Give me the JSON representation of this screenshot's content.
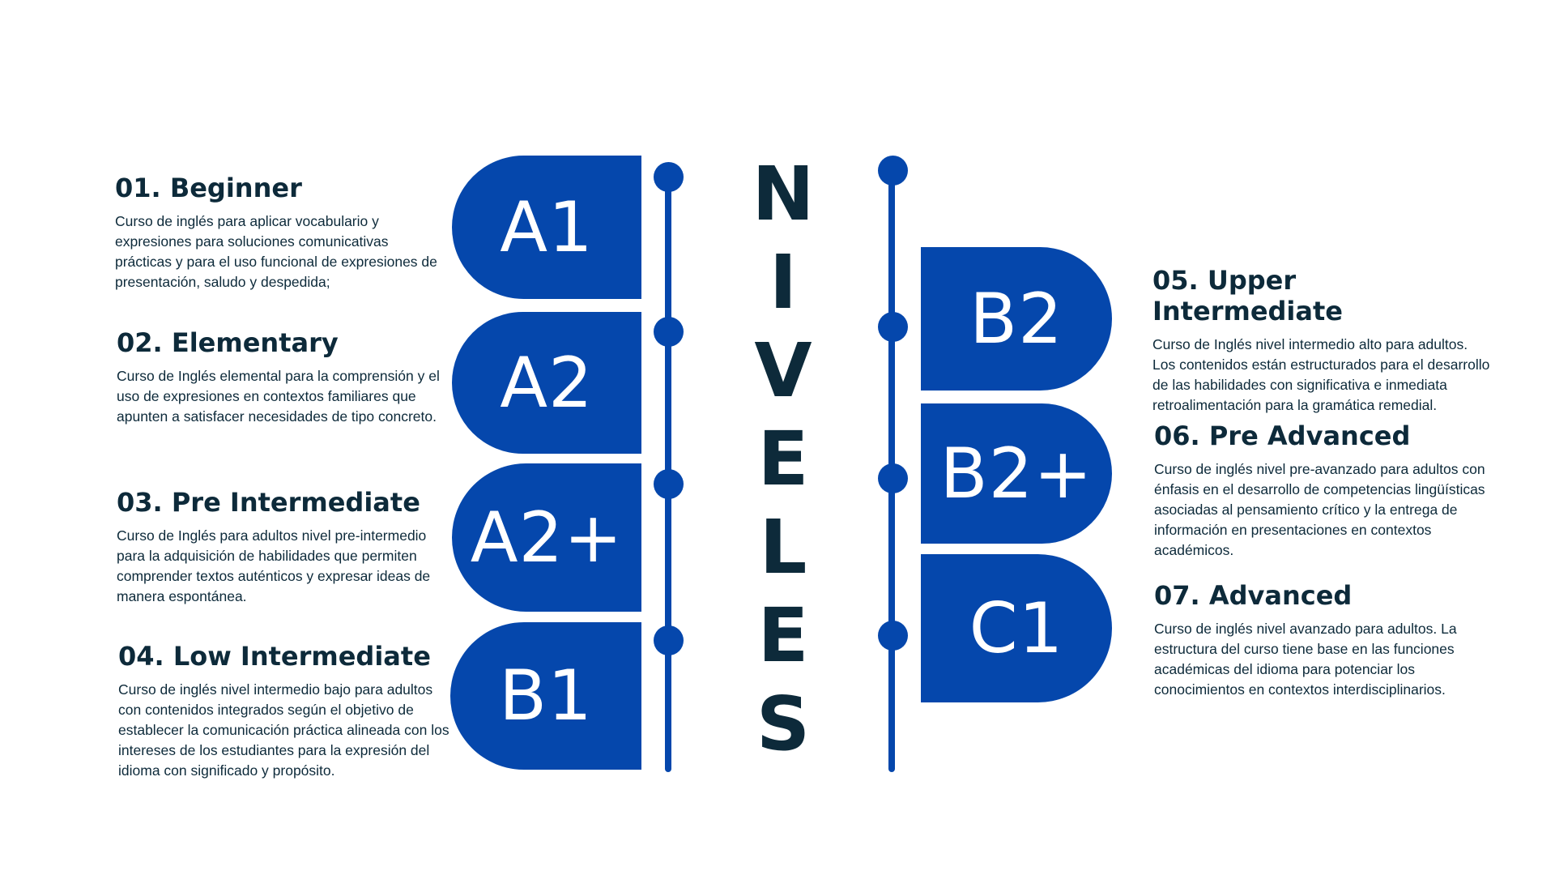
{
  "title_letters": [
    "N",
    "I",
    "V",
    "E",
    "L",
    "E",
    "S"
  ],
  "colors": {
    "accent": "#0547ac",
    "text": "#0d2a3a",
    "background": "#ffffff"
  },
  "levels": [
    {
      "code": "A1"
    },
    {
      "code": "A2"
    },
    {
      "code": "A2+"
    },
    {
      "code": "B1"
    },
    {
      "code": "B2"
    },
    {
      "code": "B2+"
    },
    {
      "code": "C1"
    }
  ],
  "courses": [
    {
      "heading": "01. Beginner",
      "description": "Curso de inglés para aplicar vocabulario y expresiones para soluciones comunicativas prácticas y para el uso funcional de expresiones de presentación, saludo y despedida;"
    },
    {
      "heading": "02. Elementary",
      "description": "Curso de Inglés elemental para la comprensión y el uso de expresiones en contextos familiares que apunten a satisfacer necesidades de tipo concreto."
    },
    {
      "heading": "03. Pre Intermediate",
      "description": "Curso de Inglés para adultos nivel pre-intermedio para la adquisición de habilidades que permiten comprender textos auténticos y expresar ideas de manera espontánea."
    },
    {
      "heading": "04. Low Intermediate",
      "description": "Curso de inglés nivel intermedio bajo para adultos con contenidos integrados según el objetivo de establecer la comunicación práctica alineada con los intereses de los estudiantes para la expresión del idioma con significado y propósito."
    },
    {
      "heading": "05. Upper Intermediate",
      "description": "Curso de Inglés nivel intermedio alto para adultos. Los contenidos están estructurados para el desarrollo de las habilidades con significativa e inmediata retroalimentación para la gramática remedial."
    },
    {
      "heading": "06. Pre Advanced",
      "description": "Curso de inglés nivel pre-avanzado para adultos con énfasis en el desarrollo de competencias lingüísticas asociadas al pensamiento crítico y la entrega de información en presentaciones en contextos académicos."
    },
    {
      "heading": "07. Advanced",
      "description": "Curso de inglés nivel avanzado para adultos. La estructura del curso tiene base en las funciones académicas del idioma para potenciar los conocimientos en contextos interdisciplinarios."
    }
  ]
}
